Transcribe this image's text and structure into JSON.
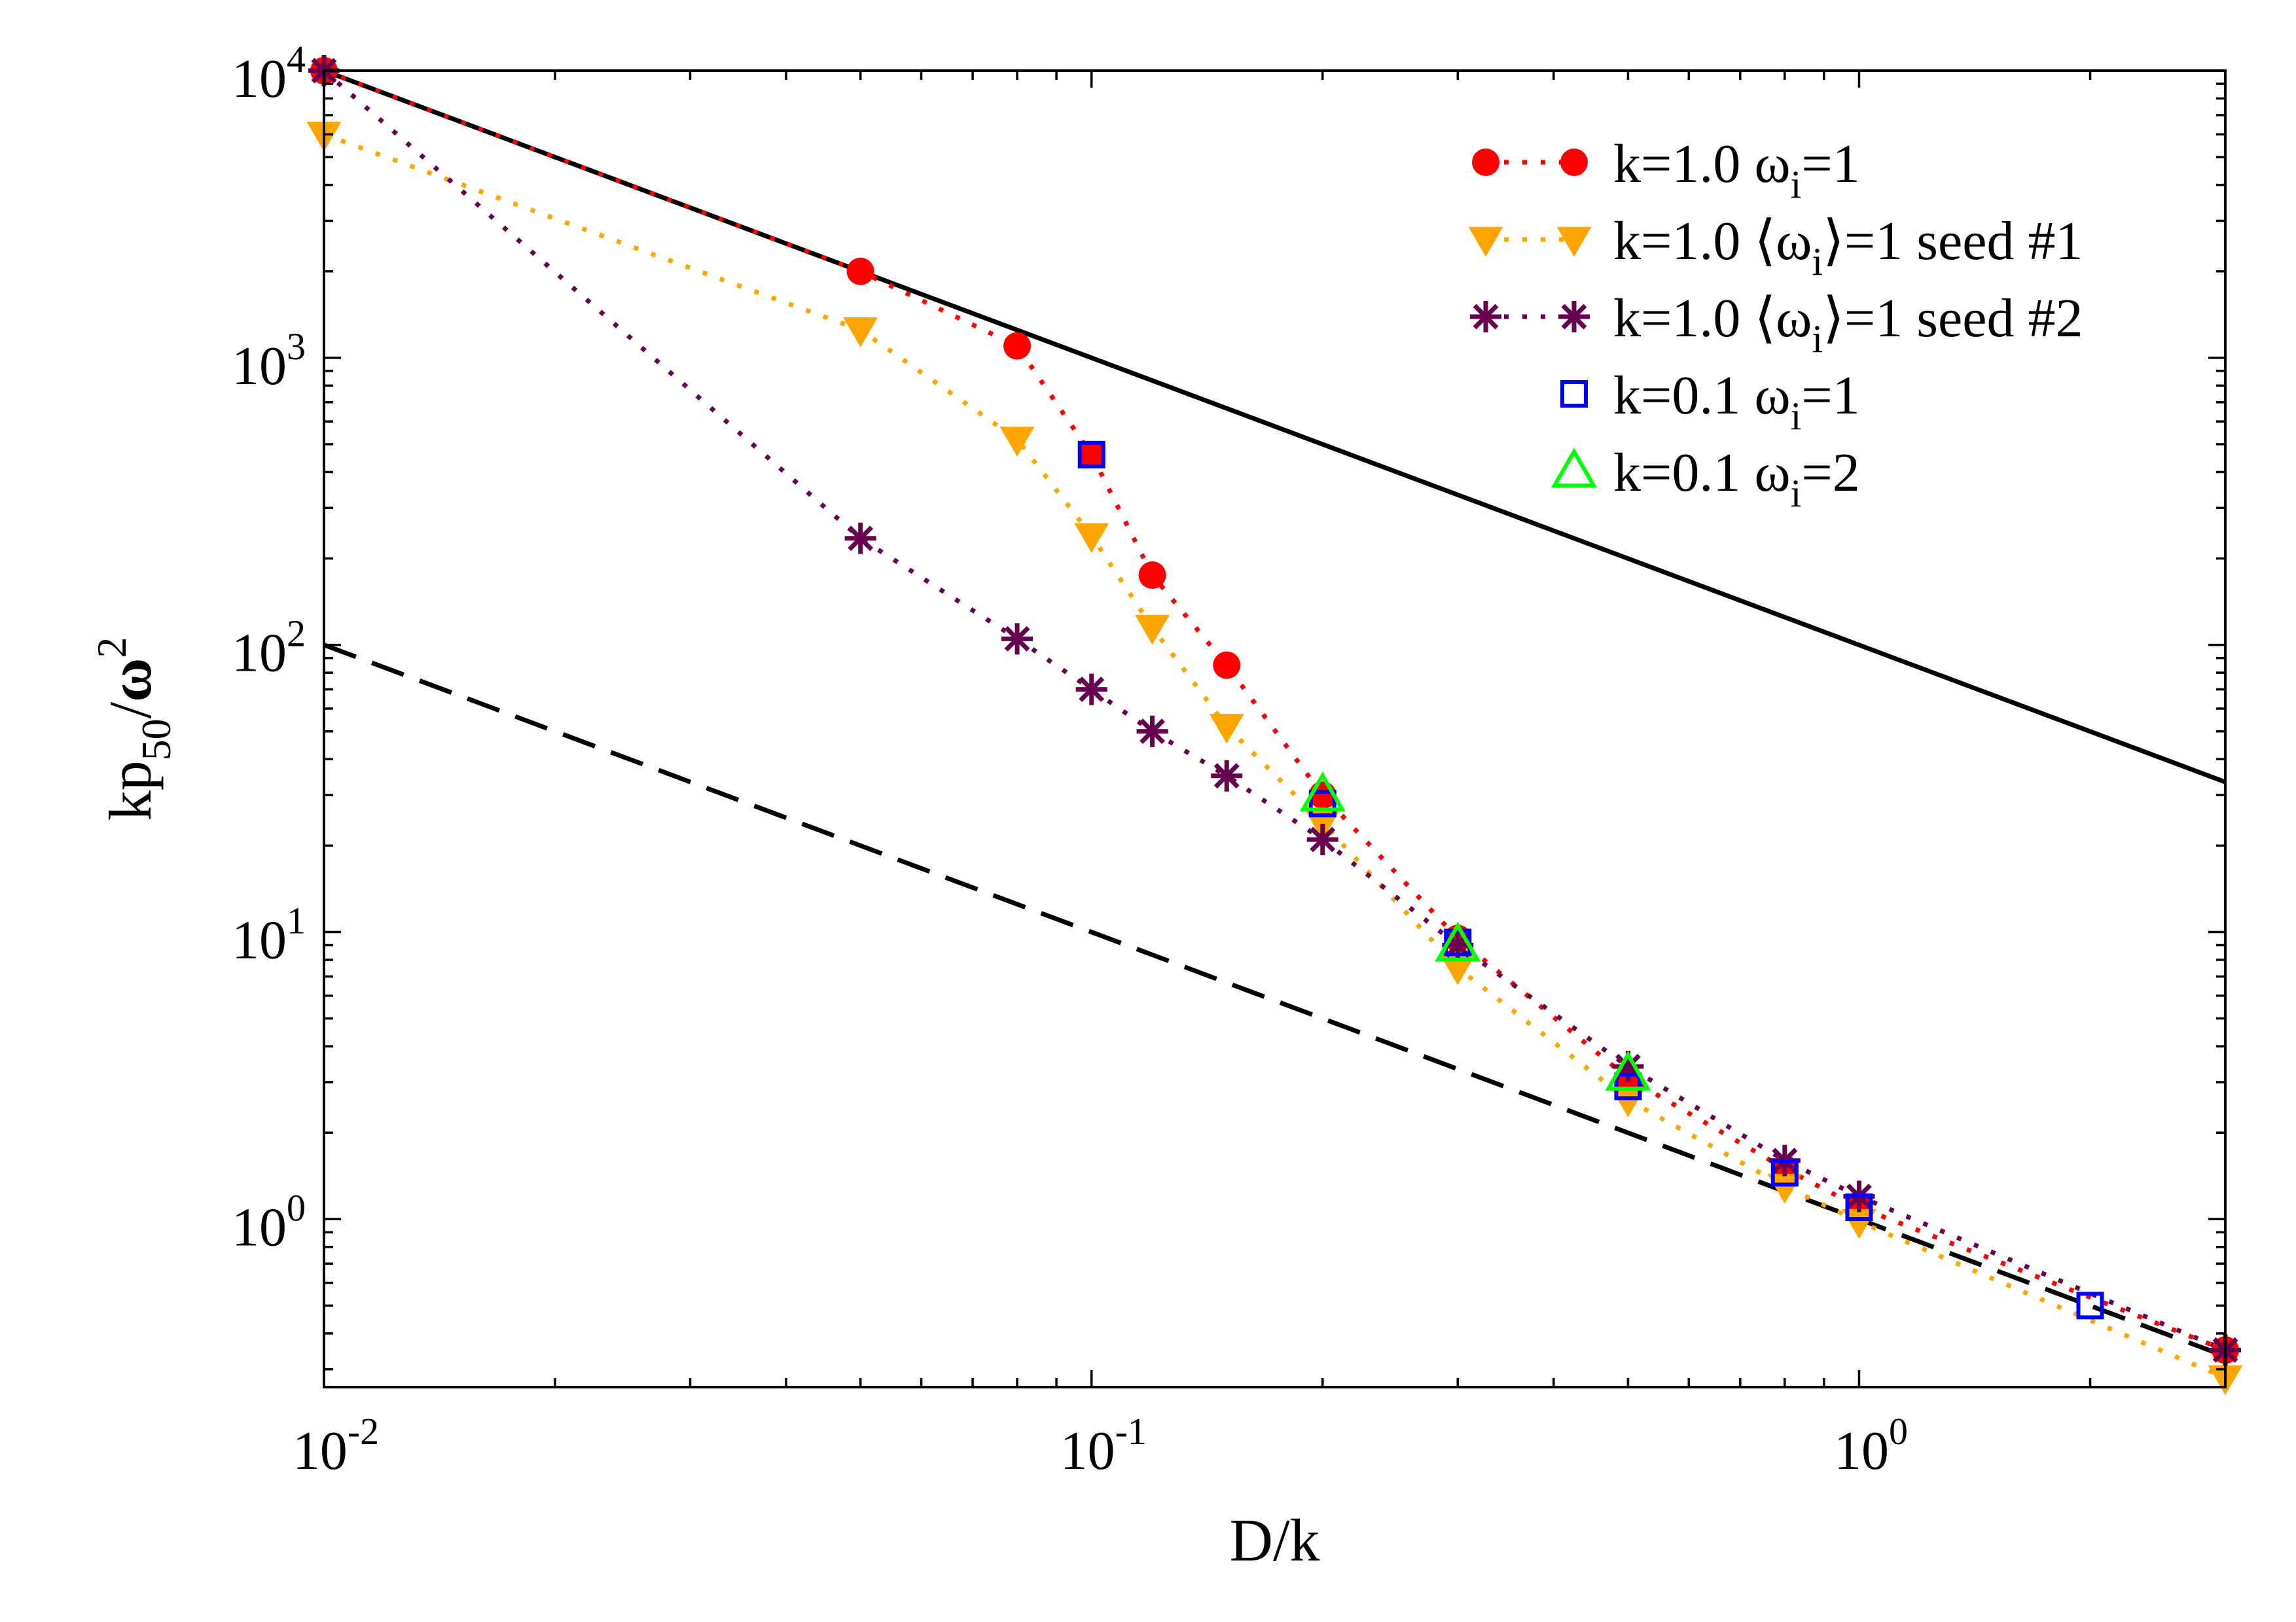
{
  "chart_data": {
    "type": "scatter",
    "x_scale": "log",
    "y_scale": "log",
    "xlabel": "D/k",
    "ylabel": {
      "base": "kp",
      "sub": "50",
      "slash": "/",
      "omega": "ω",
      "sup": "2"
    },
    "xlim": [
      0.01,
      3.0
    ],
    "ylim": [
      0.26,
      10000
    ],
    "x_major_ticks": [
      {
        "value": 0.01,
        "base": "10",
        "exp": "-2"
      },
      {
        "value": 0.1,
        "base": "10",
        "exp": "-1"
      },
      {
        "value": 1,
        "base": "10",
        "exp": "0"
      }
    ],
    "y_major_ticks": [
      {
        "value": 1,
        "base": "10",
        "exp": "0"
      },
      {
        "value": 10,
        "base": "10",
        "exp": "1"
      },
      {
        "value": 100,
        "base": "10",
        "exp": "2"
      },
      {
        "value": 1000,
        "base": "10",
        "exp": "3"
      },
      {
        "value": 10000,
        "base": "10",
        "exp": "4"
      }
    ],
    "reference_lines": [
      {
        "name": "solid-guide",
        "style": "solid",
        "color": "#000000",
        "x": [
          0.01,
          3.0
        ],
        "y": [
          10000,
          33.3
        ]
      },
      {
        "name": "dashed-guide",
        "style": "dashed",
        "color": "#000000",
        "x": [
          0.01,
          3.0
        ],
        "y": [
          100,
          0.333
        ]
      }
    ],
    "series": [
      {
        "key": "k1-fixed",
        "marker": "circle",
        "color": "#ff0000",
        "line": "dotted",
        "legend": {
          "pre": "k=1.0 ω",
          "sub": "i",
          "post": "=1"
        },
        "x": [
          0.01,
          0.05,
          0.08,
          0.1,
          0.12,
          0.15,
          0.2,
          0.3,
          0.5,
          0.8,
          1.0,
          3.0
        ],
        "y": [
          10000,
          2000,
          1100,
          460,
          175,
          85,
          30,
          9.5,
          3.1,
          1.5,
          1.1,
          0.35
        ]
      },
      {
        "key": "k1-seed1",
        "marker": "triangle-down",
        "color": "#ffa500",
        "line": "dotted",
        "legend": {
          "pre": "k=1.0 ⟨ω",
          "sub": "i",
          "post": "⟩=1 seed #1"
        },
        "x": [
          0.01,
          0.05,
          0.08,
          0.1,
          0.12,
          0.15,
          0.2,
          0.3,
          0.5,
          0.8,
          1.0,
          3.0
        ],
        "y": [
          6000,
          1250,
          520,
          240,
          115,
          52,
          24,
          7.5,
          2.6,
          1.3,
          0.98,
          0.28
        ]
      },
      {
        "key": "k1-seed2",
        "marker": "asterisk",
        "color": "#67004f",
        "line": "dotted",
        "legend": {
          "pre": "k=1.0 ⟨ω",
          "sub": "i",
          "post": "⟩=1 seed #2"
        },
        "x": [
          0.01,
          0.05,
          0.08,
          0.1,
          0.12,
          0.15,
          0.2,
          0.3,
          0.5,
          0.8,
          1.0,
          3.0
        ],
        "y": [
          10000,
          235,
          105,
          70,
          50,
          35,
          21,
          9.0,
          3.4,
          1.6,
          1.2,
          0.35
        ]
      },
      {
        "key": "k01-w1",
        "marker": "square",
        "color": "#0000ff",
        "line": "none",
        "legend": {
          "pre": "k=0.1 ω",
          "sub": "i",
          "post": "=1"
        },
        "x": [
          0.1,
          0.2,
          0.3,
          0.5,
          0.8,
          1.0,
          2.0
        ],
        "y": [
          460,
          28,
          9.2,
          2.9,
          1.45,
          1.1,
          0.5
        ]
      },
      {
        "key": "k01-w2",
        "marker": "triangle-up",
        "color": "#00ff00",
        "line": "none",
        "legend": {
          "pre": "k=0.1 ω",
          "sub": "i",
          "post": "=2"
        },
        "x": [
          0.2,
          0.3,
          0.5
        ],
        "y": [
          30,
          9.0,
          3.2
        ]
      }
    ]
  }
}
